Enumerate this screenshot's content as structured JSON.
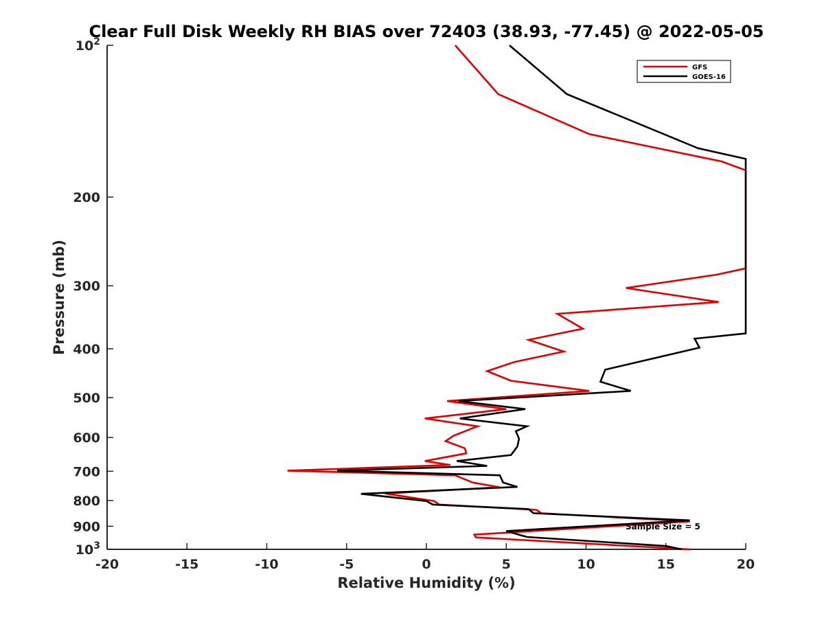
{
  "chart_data": {
    "type": "line",
    "title": "Clear Full Disk Weekly RH BIAS over 72403 (38.93, -77.45) @ 2022-05-05",
    "xlabel": "Relative Humidity (%)",
    "ylabel": "Pressure (mb)",
    "xlim": [
      -20,
      20
    ],
    "ylim": [
      100,
      1000
    ],
    "y_scale": "log",
    "y_reversed": true,
    "x_ticks": [
      "-20",
      "-15",
      "-10",
      "-5",
      "0",
      "5",
      "10",
      "15",
      "20"
    ],
    "y_ticks": [
      {
        "value": 100,
        "label": "10",
        "sup": "2"
      },
      {
        "value": 200,
        "label": "200"
      },
      {
        "value": 300,
        "label": "300"
      },
      {
        "value": 400,
        "label": "400"
      },
      {
        "value": 500,
        "label": "500"
      },
      {
        "value": 600,
        "label": "600"
      },
      {
        "value": 700,
        "label": "700"
      },
      {
        "value": 800,
        "label": "800"
      },
      {
        "value": 900,
        "label": "900"
      },
      {
        "value": 1000,
        "label": "10",
        "sup": "3"
      }
    ],
    "grid": false,
    "legend_position": "top-right",
    "annotation": "Sample Size = 5",
    "series": [
      {
        "name": "GFS",
        "color": "#e00000",
        "points": [
          [
            1.8,
            100
          ],
          [
            4.5,
            125
          ],
          [
            10.2,
            150
          ],
          [
            18.5,
            170
          ],
          [
            20,
            177
          ],
          [
            20,
            277
          ],
          [
            18.2,
            285
          ],
          [
            12.5,
            303
          ],
          [
            18.3,
            323
          ],
          [
            8.2,
            341
          ],
          [
            9.8,
            365
          ],
          [
            6.4,
            384
          ],
          [
            8.6,
            405
          ],
          [
            5.5,
            425
          ],
          [
            3.8,
            443
          ],
          [
            5.3,
            463
          ],
          [
            10.2,
            485
          ],
          [
            1.3,
            508
          ],
          [
            5.0,
            527
          ],
          [
            -0.1,
            550
          ],
          [
            3.2,
            570
          ],
          [
            1.7,
            595
          ],
          [
            1.2,
            610
          ],
          [
            2.4,
            630
          ],
          [
            2.5,
            645
          ],
          [
            -0.1,
            668
          ],
          [
            1.5,
            680
          ],
          [
            -8.7,
            698
          ],
          [
            1.8,
            713
          ],
          [
            2.9,
            737
          ],
          [
            4.6,
            753
          ],
          [
            -2.6,
            775
          ],
          [
            0.5,
            802
          ],
          [
            0.8,
            815
          ],
          [
            6.9,
            835
          ],
          [
            7.2,
            848
          ],
          [
            16.5,
            880
          ],
          [
            3.0,
            935
          ],
          [
            3.1,
            947
          ],
          [
            16.5,
            1000
          ]
        ]
      },
      {
        "name": "GOES-16",
        "color": "#000000",
        "points": [
          [
            5.2,
            100
          ],
          [
            8.8,
            125
          ],
          [
            17.0,
            160
          ],
          [
            20,
            168
          ],
          [
            20,
            373
          ],
          [
            16.8,
            382
          ],
          [
            17.1,
            398
          ],
          [
            11.2,
            440
          ],
          [
            10.9,
            465
          ],
          [
            12.8,
            485
          ],
          [
            2.0,
            508
          ],
          [
            6.2,
            527
          ],
          [
            2.1,
            550
          ],
          [
            6.3,
            570
          ],
          [
            5.6,
            583
          ],
          [
            5.8,
            603
          ],
          [
            5.7,
            625
          ],
          [
            5.3,
            650
          ],
          [
            1.9,
            668
          ],
          [
            3.8,
            683
          ],
          [
            -5.6,
            698
          ],
          [
            4.6,
            713
          ],
          [
            4.8,
            737
          ],
          [
            5.7,
            752
          ],
          [
            -4.1,
            776
          ],
          [
            0.0,
            802
          ],
          [
            0.4,
            815
          ],
          [
            6.4,
            832
          ],
          [
            6.7,
            848
          ],
          [
            16.5,
            876
          ],
          [
            5.0,
            920
          ],
          [
            6.3,
            945
          ],
          [
            15.0,
            985
          ],
          [
            16.0,
            1000
          ]
        ]
      }
    ]
  }
}
